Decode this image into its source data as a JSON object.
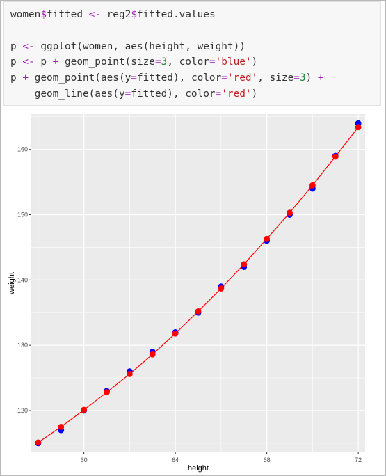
{
  "code": {
    "lines": [
      [
        {
          "t": "women"
        },
        {
          "t": "$",
          "c": "kw"
        },
        {
          "t": "fitted "
        },
        {
          "t": "<-",
          "c": "kw"
        },
        {
          "t": " reg2"
        },
        {
          "t": "$",
          "c": "kw"
        },
        {
          "t": "fitted.values"
        }
      ],
      [],
      [
        {
          "t": "p "
        },
        {
          "t": "<-",
          "c": "kw"
        },
        {
          "t": " ggplot(women, aes(height, weight))"
        }
      ],
      [
        {
          "t": "p "
        },
        {
          "t": "<-",
          "c": "kw"
        },
        {
          "t": " p "
        },
        {
          "t": "+",
          "c": "kw"
        },
        {
          "t": " geom_point(size"
        },
        {
          "t": "=",
          "c": "kw"
        },
        {
          "t": "3",
          "c": "num"
        },
        {
          "t": ", color"
        },
        {
          "t": "=",
          "c": "kw"
        },
        {
          "t": "'blue'",
          "c": "str"
        },
        {
          "t": ")"
        }
      ],
      [
        {
          "t": "p "
        },
        {
          "t": "+",
          "c": "kw"
        },
        {
          "t": " geom_point(aes(y"
        },
        {
          "t": "=",
          "c": "kw"
        },
        {
          "t": "fitted), color"
        },
        {
          "t": "=",
          "c": "kw"
        },
        {
          "t": "'red'",
          "c": "str"
        },
        {
          "t": ", size"
        },
        {
          "t": "=",
          "c": "kw"
        },
        {
          "t": "3",
          "c": "num"
        },
        {
          "t": ") "
        },
        {
          "t": "+",
          "c": "kw"
        }
      ],
      [
        {
          "t": "    geom_line(aes(y"
        },
        {
          "t": "=",
          "c": "kw"
        },
        {
          "t": "fitted), color"
        },
        {
          "t": "=",
          "c": "kw"
        },
        {
          "t": "'red'",
          "c": "str"
        },
        {
          "t": ")"
        }
      ]
    ]
  },
  "chart_data": {
    "type": "scatter",
    "xlabel": "height",
    "ylabel": "weight",
    "xlim": [
      57.7,
      72.3
    ],
    "ylim": [
      113.6,
      165.4
    ],
    "xticks": [
      60,
      64,
      68,
      72
    ],
    "yticks": [
      120,
      130,
      140,
      150,
      160
    ],
    "grid": true,
    "colors": {
      "panel": "#ebebeb",
      "grid": "#ffffff",
      "observed": "#0000ff",
      "fitted": "#ff0000"
    },
    "x": [
      58,
      59,
      60,
      61,
      62,
      63,
      64,
      65,
      66,
      67,
      68,
      69,
      70,
      71,
      72
    ],
    "series": [
      {
        "values": [
          115,
          117,
          120,
          123,
          126,
          129,
          132,
          135,
          139,
          142,
          146,
          150,
          154,
          159,
          164
        ],
        "mark": "point",
        "color": "#0000ff"
      },
      {
        "values": [
          115.1,
          117.5,
          120.1,
          122.8,
          125.6,
          128.6,
          131.8,
          135.2,
          138.7,
          142.4,
          146.3,
          150.3,
          154.5,
          158.9,
          163.4
        ],
        "mark": "point+line",
        "color": "#ff0000"
      }
    ]
  }
}
